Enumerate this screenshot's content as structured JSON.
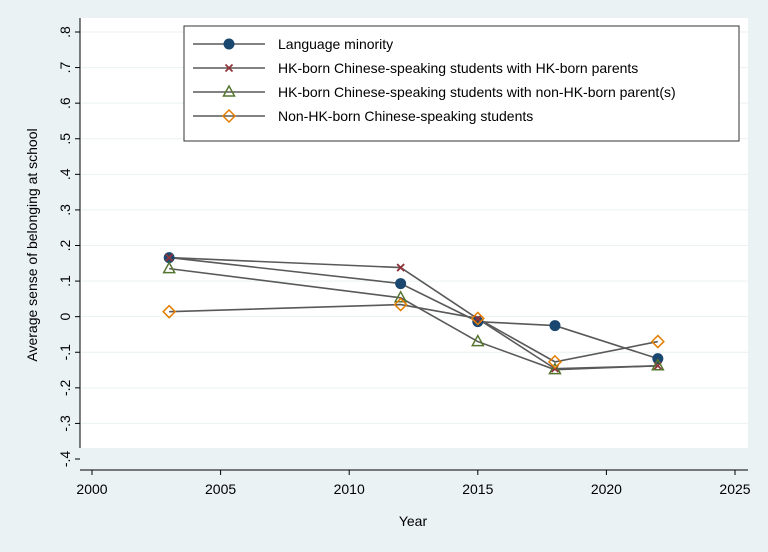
{
  "chart_data": {
    "type": "line",
    "title": "",
    "xlabel": "Year",
    "ylabel": "Average sense of belonging at school",
    "xlim": [
      2000,
      2025
    ],
    "ylim": [
      -0.4,
      0.8
    ],
    "xticks": [
      2000,
      2005,
      2010,
      2015,
      2020,
      2025
    ],
    "xtick_labels": [
      "2000",
      "2005",
      "2010",
      "2015",
      "2020",
      "2025"
    ],
    "yticks": [
      -0.4,
      -0.3,
      -0.2,
      -0.1,
      0,
      0.1,
      0.2,
      0.3,
      0.4,
      0.5,
      0.6,
      0.7,
      0.8
    ],
    "ytick_labels": [
      "-.4",
      "-.3",
      "-.2",
      "-.1",
      "0",
      ".1",
      ".2",
      ".3",
      ".4",
      ".5",
      ".6",
      ".7",
      ".8"
    ],
    "grid": true,
    "legend_position": "top-right",
    "x": [
      2003,
      2012,
      2015,
      2018,
      2022
    ],
    "series": [
      {
        "name": "Language minority",
        "marker": "circle",
        "color": "#1a476f",
        "values": [
          0.166,
          0.093,
          -0.014,
          -0.025,
          -0.118
        ]
      },
      {
        "name": "HK-born Chinese-speaking students with HK-born parents",
        "marker": "x",
        "color": "#90353b",
        "values": [
          0.166,
          0.138,
          -0.006,
          -0.146,
          -0.138
        ]
      },
      {
        "name": "HK-born Chinese-speaking students with non-HK-born parent(s)",
        "marker": "triangle",
        "color": "#55752f",
        "values": [
          0.135,
          0.053,
          -0.07,
          -0.149,
          -0.138
        ]
      },
      {
        "name": "Non-HK-born Chinese-speaking students",
        "marker": "diamond",
        "color": "#e37e00",
        "values": [
          0.014,
          0.034,
          -0.005,
          -0.127,
          -0.07
        ]
      }
    ]
  }
}
